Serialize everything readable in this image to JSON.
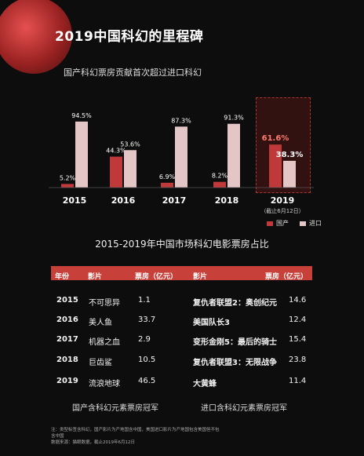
{
  "title": "2019中国科幻的里程碑",
  "chart_data": {
    "type": "bar",
    "title": "国产科幻票房贡献首次超过进口科幻",
    "categories": [
      "2015",
      "2016",
      "2017",
      "2018",
      "2019"
    ],
    "category_notes": [
      "",
      "",
      "",
      "",
      "（截止6月12日）"
    ],
    "series": [
      {
        "name": "国产",
        "color": "#c0393a",
        "values": [
          5.2,
          44.3,
          6.9,
          8.2,
          61.6
        ],
        "labels": [
          "5.2%",
          "44.3%",
          "6.9%",
          "8.2%",
          "61.6%"
        ]
      },
      {
        "name": "进口",
        "color": "#e4c6c6",
        "values": [
          94.5,
          53.6,
          87.3,
          91.3,
          38.3
        ],
        "labels": [
          "94.5%",
          "53.6%",
          "87.3%",
          "91.3%",
          "38.3%"
        ]
      }
    ],
    "ylim": [
      0,
      100
    ],
    "grid": false,
    "legend": "bottom-right",
    "highlight_category": "2019"
  },
  "table": {
    "title": "2015-2019年中国市场科幻电影票房占比",
    "headers": [
      "年份",
      "影片",
      "票房（亿元）",
      "影片",
      "票房（亿元）"
    ],
    "rows": [
      {
        "year": "2015",
        "cn_film": "不可思异",
        "cn_box": "1.1",
        "im_film": "复仇者联盟2：奥创纪元",
        "im_box": "14.6"
      },
      {
        "year": "2016",
        "cn_film": "美人鱼",
        "cn_box": "33.7",
        "im_film": "美国队长3",
        "im_box": "12.4"
      },
      {
        "year": "2017",
        "cn_film": "机器之血",
        "cn_box": "2.9",
        "im_film": "变形金刚5：最后的骑士",
        "im_box": "15.4"
      },
      {
        "year": "2018",
        "cn_film": "巨齿鲨",
        "cn_box": "10.5",
        "im_film": "复仇者联盟3：无限战争",
        "im_box": "23.8"
      },
      {
        "year": "2019",
        "cn_film": "流浪地球",
        "cn_box": "46.5",
        "im_film": "大黄蜂",
        "im_box": "11.4"
      }
    ],
    "caption_left": "国产含科幻元素票房冠军",
    "caption_right": "进口含科幻元素票房冠军"
  },
  "notes": {
    "line1": "注：类型标签含科幻，国产影片为产地国含中国，美国进口影片为产地国包含美国但不包",
    "line2": "含中国",
    "line3": "数据来源：猫眼数据，截止2019年6月12日"
  }
}
